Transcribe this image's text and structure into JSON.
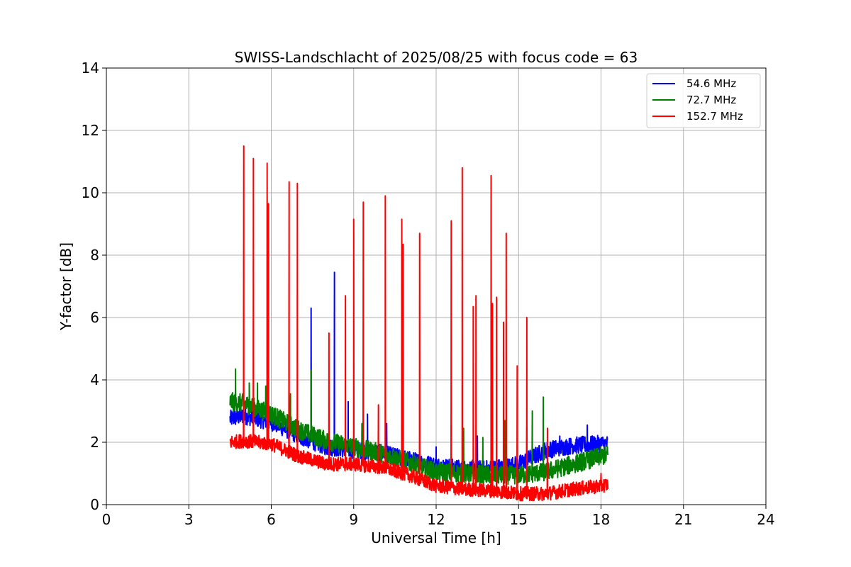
{
  "chart_data": {
    "type": "line",
    "title": "SWISS-Landschlacht of 2025/08/25 with focus code = 63",
    "xlabel": "Universal Time [h]",
    "ylabel": "Y-factor [dB]",
    "xlim": [
      0,
      24
    ],
    "ylim": [
      0,
      14
    ],
    "xticks": [
      "0",
      "3",
      "6",
      "9",
      "12",
      "15",
      "18",
      "21",
      "24"
    ],
    "yticks": [
      "0",
      "2",
      "4",
      "6",
      "8",
      "10",
      "12",
      "14"
    ],
    "grid": true,
    "legend_position": "top-right",
    "series": [
      {
        "name": " 54.6 MHz",
        "color": "#0000ff",
        "baseline": [
          [
            4.5,
            2.75
          ],
          [
            5.0,
            2.85
          ],
          [
            6.0,
            2.65
          ],
          [
            7.0,
            2.2
          ],
          [
            8.0,
            1.85
          ],
          [
            9.0,
            1.75
          ],
          [
            10.0,
            1.65
          ],
          [
            11.0,
            1.45
          ],
          [
            12.0,
            1.25
          ],
          [
            13.0,
            1.15
          ],
          [
            14.0,
            1.15
          ],
          [
            15.0,
            1.3
          ],
          [
            16.0,
            1.75
          ],
          [
            17.0,
            1.9
          ],
          [
            18.0,
            1.95
          ],
          [
            18.25,
            1.95
          ]
        ],
        "spikes": [
          [
            4.65,
            3.4
          ],
          [
            7.45,
            6.3
          ],
          [
            8.3,
            7.45
          ],
          [
            8.8,
            3.3
          ],
          [
            9.5,
            2.9
          ],
          [
            10.2,
            2.6
          ],
          [
            12.0,
            1.85
          ],
          [
            13.5,
            2.2
          ],
          [
            15.3,
            2.5
          ],
          [
            16.5,
            2.2
          ],
          [
            17.5,
            2.55
          ]
        ]
      },
      {
        "name": " 72.7 MHz",
        "color": "#008000",
        "baseline": [
          [
            4.5,
            3.3
          ],
          [
            5.0,
            3.25
          ],
          [
            6.0,
            2.9
          ],
          [
            7.0,
            2.4
          ],
          [
            8.0,
            2.05
          ],
          [
            9.0,
            1.85
          ],
          [
            10.0,
            1.65
          ],
          [
            11.0,
            1.35
          ],
          [
            12.0,
            1.05
          ],
          [
            13.0,
            1.0
          ],
          [
            14.0,
            0.95
          ],
          [
            15.0,
            0.95
          ],
          [
            16.0,
            1.05
          ],
          [
            17.0,
            1.3
          ],
          [
            18.0,
            1.55
          ],
          [
            18.25,
            1.6
          ]
        ],
        "spikes": [
          [
            4.7,
            4.35
          ],
          [
            5.2,
            3.9
          ],
          [
            5.5,
            3.9
          ],
          [
            5.8,
            3.8
          ],
          [
            6.7,
            3.55
          ],
          [
            7.45,
            4.3
          ],
          [
            9.3,
            2.6
          ],
          [
            12.55,
            2.55
          ],
          [
            13.0,
            2.45
          ],
          [
            13.7,
            2.15
          ],
          [
            14.5,
            2.7
          ],
          [
            15.5,
            3.0
          ],
          [
            15.9,
            3.45
          ]
        ]
      },
      {
        "name": " 152.7 MHz",
        "color": "#ff0000",
        "baseline": [
          [
            4.5,
            2.0
          ],
          [
            5.0,
            2.05
          ],
          [
            6.0,
            1.95
          ],
          [
            7.0,
            1.55
          ],
          [
            8.0,
            1.3
          ],
          [
            9.0,
            1.3
          ],
          [
            10.0,
            1.2
          ],
          [
            11.0,
            0.95
          ],
          [
            12.0,
            0.6
          ],
          [
            13.0,
            0.5
          ],
          [
            14.0,
            0.45
          ],
          [
            15.0,
            0.35
          ],
          [
            16.0,
            0.35
          ],
          [
            17.0,
            0.5
          ],
          [
            18.0,
            0.6
          ],
          [
            18.25,
            0.65
          ]
        ],
        "spikes": [
          [
            5.0,
            11.5
          ],
          [
            5.35,
            11.1
          ],
          [
            5.85,
            10.95
          ],
          [
            5.9,
            9.65
          ],
          [
            6.65,
            10.35
          ],
          [
            6.95,
            10.3
          ],
          [
            8.1,
            5.5
          ],
          [
            8.7,
            6.7
          ],
          [
            9.0,
            9.15
          ],
          [
            9.35,
            9.7
          ],
          [
            9.9,
            3.2
          ],
          [
            10.15,
            9.9
          ],
          [
            10.75,
            9.15
          ],
          [
            10.8,
            8.35
          ],
          [
            11.4,
            8.7
          ],
          [
            12.55,
            9.1
          ],
          [
            12.95,
            10.8
          ],
          [
            13.35,
            6.35
          ],
          [
            13.45,
            6.7
          ],
          [
            14.0,
            10.55
          ],
          [
            14.05,
            6.45
          ],
          [
            14.2,
            6.65
          ],
          [
            14.45,
            5.85
          ],
          [
            14.55,
            8.7
          ],
          [
            14.95,
            4.45
          ],
          [
            15.3,
            6.0
          ],
          [
            16.05,
            2.45
          ],
          [
            18.0,
            1.0
          ]
        ]
      }
    ]
  }
}
